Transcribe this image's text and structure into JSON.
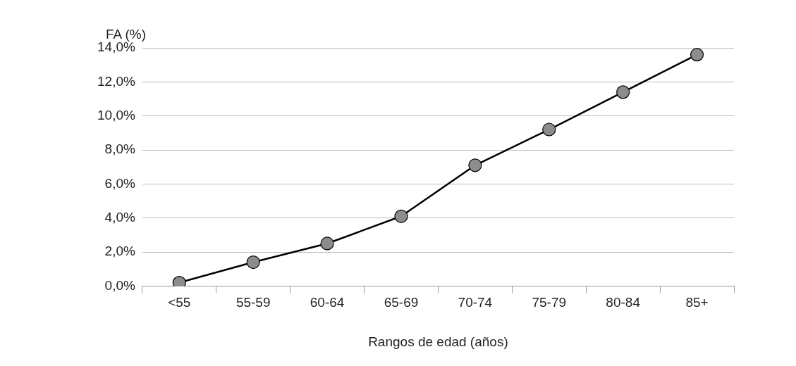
{
  "chart_data": {
    "type": "line",
    "ylabel": "FA (%)",
    "xlabel": "Rangos de edad (años)",
    "categories": [
      "<55",
      "55-59",
      "60-64",
      "65-69",
      "70-74",
      "75-79",
      "80-84",
      "85+"
    ],
    "series": [
      {
        "color": "#000000",
        "values": [
          0.2,
          1.4,
          2.5,
          4.1,
          7.1,
          9.2,
          11.4,
          13.6
        ]
      }
    ],
    "ylim": [
      0,
      14
    ],
    "yticks": [
      {
        "value": 0,
        "label": "0,0%"
      },
      {
        "value": 2,
        "label": "2,0%"
      },
      {
        "value": 4,
        "label": "4,0%"
      },
      {
        "value": 6,
        "label": "6,0%"
      },
      {
        "value": 8,
        "label": "8,0%"
      },
      {
        "value": 10,
        "label": "10,0%"
      },
      {
        "value": 12,
        "label": "12,0%"
      },
      {
        "value": 14,
        "label": "14,0%"
      }
    ],
    "grid": "y",
    "marker": "circle",
    "line_style": "solid",
    "legend": false
  }
}
